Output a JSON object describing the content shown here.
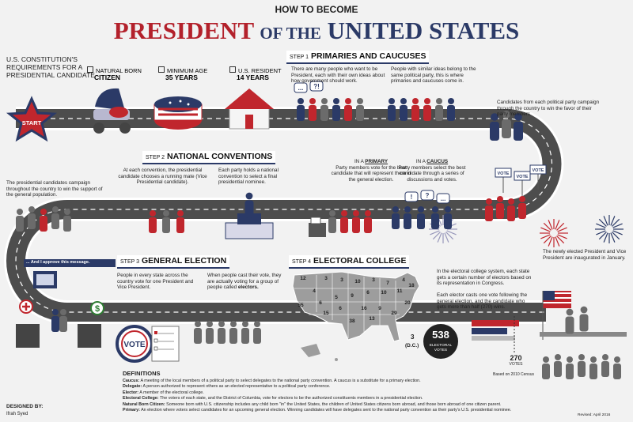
{
  "header": {
    "pretitle": "HOW TO BECOME",
    "title_red": "PRESIDENT",
    "title_mid": "OF THE",
    "title_blue": "UNITED STATES"
  },
  "requirements": {
    "heading": "U.S. CONSTITUTION'S REQUIREMENTS FOR A PRESIDENTIAL CANDIDATE",
    "items": [
      {
        "label": "NATURAL BORN",
        "value": "CITIZEN"
      },
      {
        "label": "MINIMUM AGE",
        "value": "35 YEARS"
      },
      {
        "label": "U.S. RESIDENT",
        "value": "14 YEARS"
      }
    ],
    "start": "START"
  },
  "step1": {
    "step": "STEP 1",
    "title": "PRIMARIES AND CAUCUSES",
    "text1": "There are many people who want to be President, each with their own ideas about how government should work.",
    "text2": "People with similar ideas belong to the same political party, this is where primaries and caucuses come in.",
    "text3": "Candidates from each political party campaign through the country to win the favor of their party members.",
    "bubbles": [
      "...",
      "?!",
      "!",
      "?",
      "..."
    ]
  },
  "step2": {
    "step": "STEP 2",
    "title": "NATIONAL CONVENTIONS",
    "text1": "At each convention, the presidential candidate chooses a running mate (Vice Presidential candidate).",
    "text2": "Each party holds a national convention to select a final presidential nominee.",
    "primary_label": "IN A",
    "primary": "PRIMARY",
    "primary_text": "Party members vote for the best candidate that will represent them in the general election.",
    "caucus_label": "IN A",
    "caucus": "CAUCUS",
    "caucus_text": "Party members select the best candidate through a series of discussions and votes.",
    "campaign_text": "The presidential candidates campaign throughout the country to win the support of the general population.",
    "signs": [
      "VOTE",
      "VOTE",
      "VOTE"
    ]
  },
  "step3": {
    "step": "STEP 3",
    "title": "GENERAL ELECTION",
    "text1": "People in every state across the country vote for one President and Vice President.",
    "text2": "When people cast their vote, they are actually voting for a group of people called",
    "text2_bold": "electors.",
    "ad": "... And I approve this message.",
    "badge": "VOTE"
  },
  "step4": {
    "step": "STEP 4",
    "title": "ELECTORAL COLLEGE",
    "text1": "In the electoral college system, each state gets a certain number of electors based on its representation in Congress.",
    "text2": "Each elector casts one vote following the general election, and the candidate who gets more than half (270) wins.",
    "total": "538",
    "total_label": "ELECTORAL VOTES",
    "win": "270",
    "win_label": "VOTES",
    "dc_votes": "3",
    "dc": "(D.C.)",
    "census": "Based on 2010 Census",
    "map_numbers": [
      "12",
      "3",
      "4",
      "3",
      "10",
      "3",
      "7",
      "4",
      "55",
      "6",
      "5",
      "9",
      "6",
      "10",
      "11",
      "16",
      "9",
      "38",
      "29",
      "20",
      "18",
      "15",
      "13",
      "6"
    ]
  },
  "inauguration": "The newly elected President and Vice President are inaugurated in January.",
  "definitions": {
    "heading": "DEFINITIONS",
    "items": [
      {
        "term": "Caucus:",
        "text": "A meeting of the local members of a political party to select delegates to the national party convention. A caucus is a substitute for a primary election."
      },
      {
        "term": "Delegate:",
        "text": "A person authorized to represent others as an elected representative to a political party conference."
      },
      {
        "term": "Elector:",
        "text": "A member of the electoral college."
      },
      {
        "term": "Electoral College:",
        "text": "The voters of each state, and the District of Columbia, vote for electors to be the authorized constituents members in a presidential election."
      },
      {
        "term": "Natural Born Citizen:",
        "text": "Someone born with U.S. citizenship includes any child born \"in\" the United States, the children of United States citizens born abroad, and those born abroad of one citizen parent."
      },
      {
        "term": "Primary:",
        "text": "An election where voters select candidates for an upcoming general election. Winning candidates will have delegates sent to the national party convention as their party's U.S. presidential nominee."
      }
    ]
  },
  "credits": {
    "designed_by": "DESIGNED BY:",
    "designer": "Ifrah Syed",
    "revised": "Revised: April 2016"
  }
}
